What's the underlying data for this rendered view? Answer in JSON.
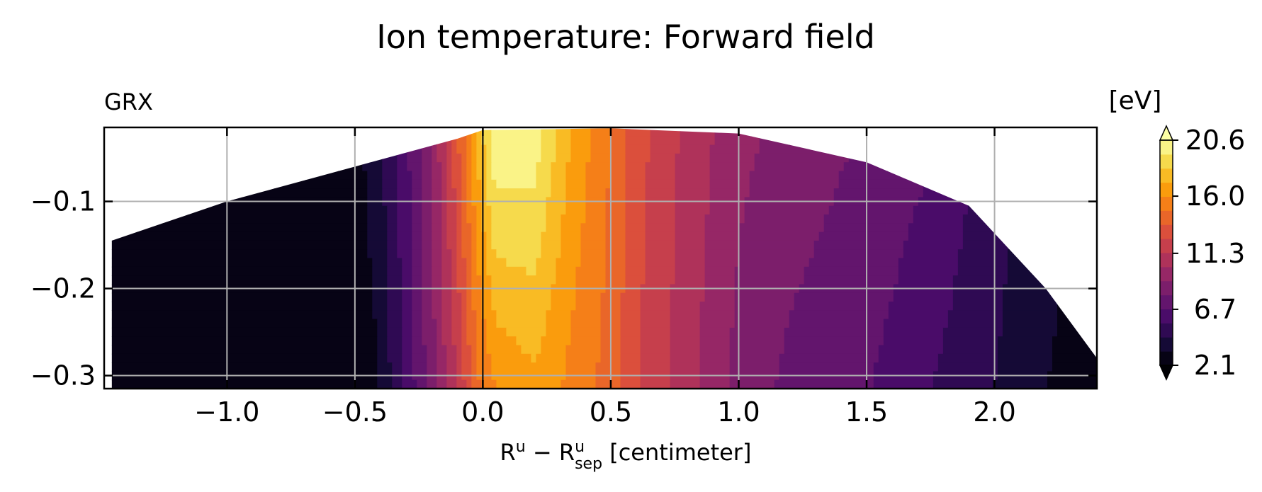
{
  "chart_data": {
    "type": "heatmap",
    "title": "Ion temperature: Forward field",
    "panel_label": "GRX",
    "xlabel": {
      "base": "R",
      "sup1": "u",
      "mid": " − R",
      "sup2": "u",
      "sub2": "sep",
      "tail": " [centimeter]"
    },
    "xlim": [
      -1.48,
      2.4
    ],
    "ylim": [
      -0.315,
      -0.015
    ],
    "xticks": [
      -1.0,
      -0.5,
      0.0,
      0.5,
      1.0,
      1.5,
      2.0
    ],
    "xtick_labels": [
      "−1.0",
      "−0.5",
      "0.0",
      "0.5",
      "1.0",
      "1.5",
      "2.0"
    ],
    "yticks": [
      -0.1,
      -0.2,
      -0.3
    ],
    "ytick_labels": [
      "−0.1",
      "−0.2",
      "−0.3"
    ],
    "grid": true,
    "colormap": "inferno",
    "colorbar": {
      "label": "[eV]",
      "min": 2.1,
      "max": 20.6,
      "levels": 16,
      "extend": "both",
      "ticks": [
        2.1,
        6.7,
        11.3,
        16.0,
        20.6
      ],
      "tick_labels": [
        "2.1",
        "6.7",
        "11.3",
        "16.0",
        "20.6"
      ]
    },
    "boundary_top": [
      [
        -1.45,
        -0.145
      ],
      [
        -1.0,
        -0.1
      ],
      [
        -0.5,
        -0.06
      ],
      [
        -0.1,
        -0.028
      ],
      [
        0.0,
        -0.018
      ],
      [
        0.5,
        -0.016
      ],
      [
        1.0,
        -0.022
      ],
      [
        1.5,
        -0.055
      ],
      [
        1.9,
        -0.105
      ],
      [
        2.2,
        -0.2
      ],
      [
        2.4,
        -0.28
      ]
    ],
    "boundary_bottom": [
      [
        -1.45,
        -0.315
      ],
      [
        2.4,
        -0.315
      ]
    ],
    "temperature_profile": {
      "x": [
        -1.48,
        -0.55,
        -0.42,
        -0.3,
        -0.2,
        -0.1,
        -0.02,
        0.05,
        0.2,
        0.35,
        0.5,
        0.6,
        0.8,
        1.0,
        1.2,
        1.5,
        1.75,
        2.0,
        2.4
      ],
      "t_top": [
        2.1,
        2.4,
        3.8,
        6.5,
        9.0,
        13.5,
        17.5,
        20.6,
        20.2,
        17.0,
        14.8,
        13.0,
        11.0,
        9.4,
        8.6,
        7.8,
        6.9,
        5.0,
        3.0
      ],
      "t_bottom": [
        2.1,
        2.1,
        3.1,
        5.8,
        8.6,
        11.4,
        14.6,
        16.0,
        16.8,
        15.6,
        14.3,
        12.6,
        10.6,
        8.6,
        7.6,
        6.8,
        5.6,
        4.4,
        2.2
      ]
    }
  }
}
